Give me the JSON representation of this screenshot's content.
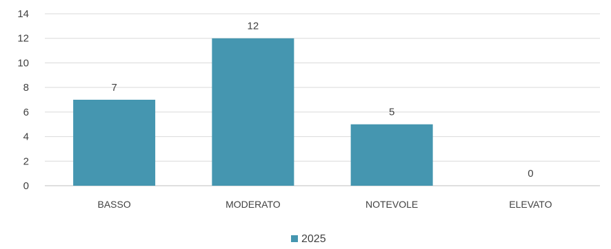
{
  "chart_data": {
    "type": "bar",
    "categories": [
      "BASSO",
      "MODERATO",
      "NOTEVOLE",
      "ELEVATO"
    ],
    "series": [
      {
        "name": "2025",
        "values": [
          7,
          12,
          5,
          0
        ],
        "color": "#4596b0"
      }
    ],
    "data_labels": [
      "7",
      "12",
      "5",
      "0"
    ],
    "ylim": [
      0,
      14
    ],
    "yticks": [
      "0",
      "2",
      "4",
      "6",
      "8",
      "10",
      "12",
      "14"
    ],
    "grid": true,
    "legend_position": "bottom"
  }
}
